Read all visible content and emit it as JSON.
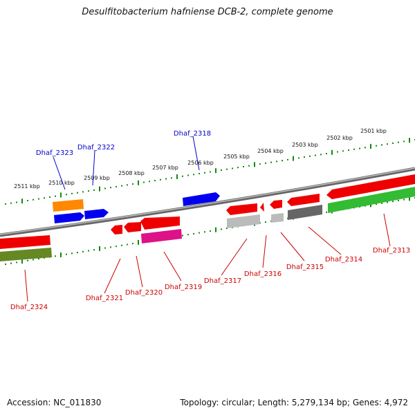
{
  "title": "Desulfitobacterium hafniense DCB-2, complete genome",
  "accession": "Accession: NC_011830",
  "topology": "Topology: circular; Length: 5,279,134 bp; Genes: 4,972",
  "scale_labels": [
    "2501 kbp",
    "2502 kbp",
    "2503 kbp",
    "2504 kbp",
    "2505 kbp",
    "2506 kbp",
    "2507 kbp",
    "2508 kbp",
    "2509 kbp",
    "2510 kbp",
    "2511 kbp"
  ],
  "genes": [
    {
      "name": "Dhaf_2313",
      "color": "#cc0000"
    },
    {
      "name": "Dhaf_2314",
      "color": "#cc0000"
    },
    {
      "name": "Dhaf_2315",
      "color": "#cc0000"
    },
    {
      "name": "Dhaf_2316",
      "color": "#cc0000"
    },
    {
      "name": "Dhaf_2317",
      "color": "#cc0000"
    },
    {
      "name": "Dhaf_2318",
      "color": "#0000cc"
    },
    {
      "name": "Dhaf_2319",
      "color": "#cc0000"
    },
    {
      "name": "Dhaf_2320",
      "color": "#cc0000"
    },
    {
      "name": "Dhaf_2321",
      "color": "#cc0000"
    },
    {
      "name": "Dhaf_2322",
      "color": "#0000cc"
    },
    {
      "name": "Dhaf_2323",
      "color": "#0000cc"
    },
    {
      "name": "Dhaf_2324",
      "color": "#cc0000"
    }
  ],
  "colors": {
    "forward_gene": "#0000ff",
    "reverse_gene": "#ee0000",
    "tick": "#118811",
    "backbone": "#888888",
    "green_feature": "#33bb33",
    "olive_feature": "#668822",
    "orange_feature": "#ff8800",
    "magenta_feature": "#dd1188",
    "gray_feature": "#bbbbbb",
    "dark_gray_feature": "#666666"
  }
}
